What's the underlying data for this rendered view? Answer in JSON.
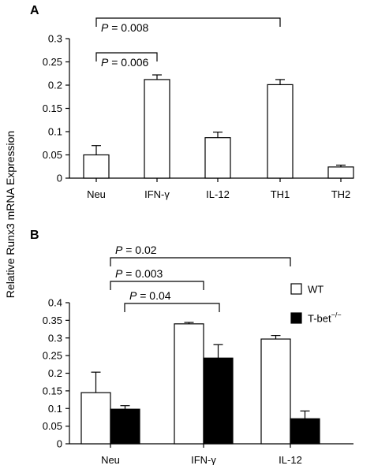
{
  "figure": {
    "ylabel": "Relative Runx3 mRNA Expression"
  },
  "chart_data": [
    {
      "panel": "A",
      "type": "bar",
      "categories": [
        "Neu",
        "IFN-γ",
        "IL-12",
        "TH1",
        "TH2"
      ],
      "series": [
        {
          "values": [
            0.05,
            0.212,
            0.087,
            0.201,
            0.024
          ],
          "errors": [
            0.02,
            0.01,
            0.012,
            0.011,
            0.004
          ],
          "color": "#ffffff"
        }
      ],
      "ylim": [
        0,
        0.3
      ],
      "yticks": [
        "0",
        "0.05",
        "0.1",
        "0.15",
        "0.2",
        "0.25",
        "0.3"
      ],
      "brackets": [
        {
          "from": 0,
          "to": 3,
          "p_label": "P",
          "p_text": " = 0.008"
        },
        {
          "from": 0,
          "to": 1,
          "p_label": "P",
          "p_text": " = 0.006"
        }
      ]
    },
    {
      "panel": "B",
      "type": "bar",
      "categories": [
        "Neu",
        "IFN-γ",
        "IL-12"
      ],
      "series": [
        {
          "name": "WT",
          "values": [
            0.145,
            0.34,
            0.297
          ],
          "errors": [
            0.058,
            0.004,
            0.01
          ],
          "color": "#ffffff"
        },
        {
          "name": "T-bet",
          "name_sup": "−/−",
          "values": [
            0.098,
            0.243,
            0.071
          ],
          "errors": [
            0.01,
            0.038,
            0.022
          ],
          "color": "#000000"
        }
      ],
      "ylim": [
        0,
        0.4
      ],
      "yticks": [
        "0",
        "0.05",
        "0.1",
        "0.15",
        "0.2",
        "0.25",
        "0.3",
        "0.35",
        "0.4"
      ],
      "legend_position": "right",
      "brackets": [
        {
          "from": 0,
          "to": 2,
          "p_label": "P",
          "p_text": " = 0.02"
        },
        {
          "from": 0,
          "to": 1,
          "p_label": "P",
          "p_text": " = 0.003"
        },
        {
          "from": 0.5,
          "to": 1.5,
          "p_label": "P",
          "p_text": " = 0.04"
        }
      ]
    }
  ]
}
